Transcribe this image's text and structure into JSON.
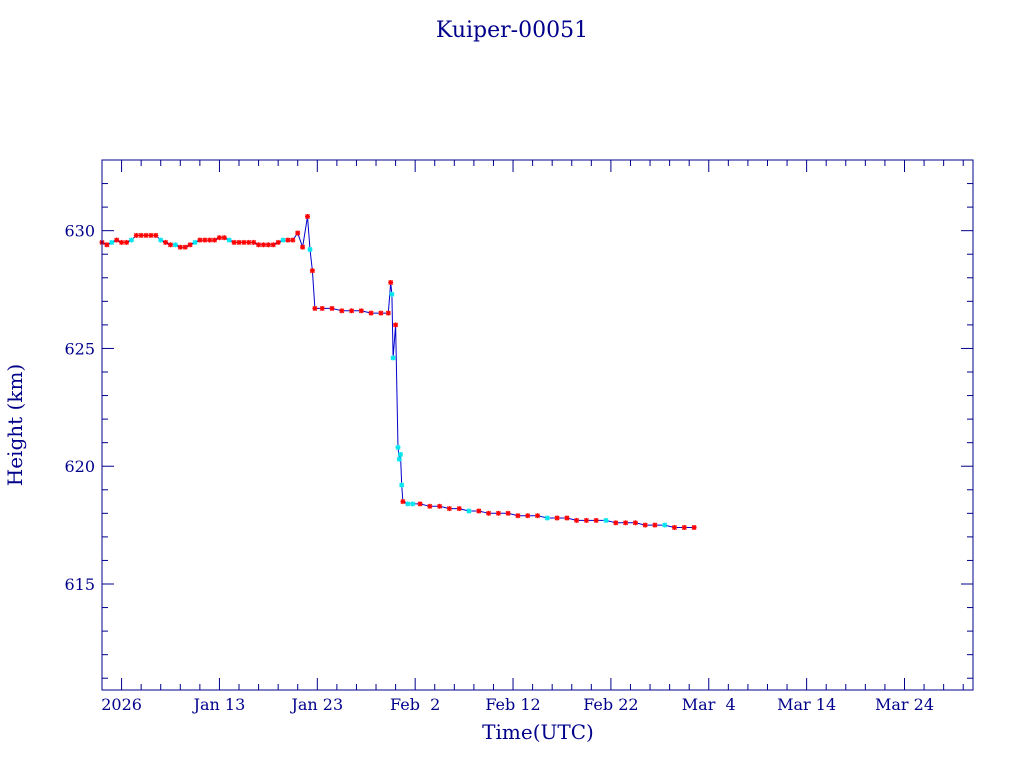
{
  "chart_data": {
    "type": "scatter",
    "title": "Kuiper-00051",
    "xlabel": "Time(UTC)",
    "ylabel": "Height (km)",
    "xlim": [
      "2026-01-01",
      "2026-03-31"
    ],
    "ylim": [
      610.5,
      633
    ],
    "x_ticks": [
      "2026",
      "Jan 13",
      "Jan 23",
      "Feb  2",
      "Feb 12",
      "Feb 22",
      "Mar  4",
      "Mar 14",
      "Mar 24"
    ],
    "y_ticks": [
      "615",
      "620",
      "625",
      "630"
    ],
    "colors": {
      "frame": "#00008b",
      "line": "#0000cd",
      "marker_primary": "#ff0000",
      "marker_secondary": "#00e5ee"
    },
    "series": [
      {
        "points": [
          {
            "t": "2026-01-01T00:00",
            "y": 629.5,
            "c": "r"
          },
          {
            "t": "2026-01-01T12:00",
            "y": 629.4,
            "c": "r"
          },
          {
            "t": "2026-01-02T00:00",
            "y": 629.5,
            "c": "c"
          },
          {
            "t": "2026-01-02T12:00",
            "y": 629.6,
            "c": "r"
          },
          {
            "t": "2026-01-03T00:00",
            "y": 629.5,
            "c": "r"
          },
          {
            "t": "2026-01-03T12:00",
            "y": 629.5,
            "c": "r"
          },
          {
            "t": "2026-01-04T00:00",
            "y": 629.6,
            "c": "c"
          },
          {
            "t": "2026-01-04T12:00",
            "y": 629.8,
            "c": "r"
          },
          {
            "t": "2026-01-05T00:00",
            "y": 629.8,
            "c": "r"
          },
          {
            "t": "2026-01-05T12:00",
            "y": 629.8,
            "c": "r"
          },
          {
            "t": "2026-01-06T00:00",
            "y": 629.8,
            "c": "r"
          },
          {
            "t": "2026-01-06T12:00",
            "y": 629.8,
            "c": "r"
          },
          {
            "t": "2026-01-07T00:00",
            "y": 629.6,
            "c": "c"
          },
          {
            "t": "2026-01-07T12:00",
            "y": 629.5,
            "c": "r"
          },
          {
            "t": "2026-01-08T00:00",
            "y": 629.4,
            "c": "r"
          },
          {
            "t": "2026-01-08T12:00",
            "y": 629.4,
            "c": "c"
          },
          {
            "t": "2026-01-09T00:00",
            "y": 629.3,
            "c": "r"
          },
          {
            "t": "2026-01-09T12:00",
            "y": 629.3,
            "c": "r"
          },
          {
            "t": "2026-01-10T00:00",
            "y": 629.4,
            "c": "r"
          },
          {
            "t": "2026-01-10T12:00",
            "y": 629.5,
            "c": "c"
          },
          {
            "t": "2026-01-11T00:00",
            "y": 629.6,
            "c": "r"
          },
          {
            "t": "2026-01-11T12:00",
            "y": 629.6,
            "c": "r"
          },
          {
            "t": "2026-01-12T00:00",
            "y": 629.6,
            "c": "r"
          },
          {
            "t": "2026-01-12T12:00",
            "y": 629.6,
            "c": "r"
          },
          {
            "t": "2026-01-13T00:00",
            "y": 629.7,
            "c": "r"
          },
          {
            "t": "2026-01-13T12:00",
            "y": 629.7,
            "c": "r"
          },
          {
            "t": "2026-01-14T00:00",
            "y": 629.6,
            "c": "c"
          },
          {
            "t": "2026-01-14T12:00",
            "y": 629.5,
            "c": "r"
          },
          {
            "t": "2026-01-15T00:00",
            "y": 629.5,
            "c": "r"
          },
          {
            "t": "2026-01-15T12:00",
            "y": 629.5,
            "c": "r"
          },
          {
            "t": "2026-01-16T00:00",
            "y": 629.5,
            "c": "r"
          },
          {
            "t": "2026-01-16T12:00",
            "y": 629.5,
            "c": "r"
          },
          {
            "t": "2026-01-17T00:00",
            "y": 629.4,
            "c": "r"
          },
          {
            "t": "2026-01-17T12:00",
            "y": 629.4,
            "c": "r"
          },
          {
            "t": "2026-01-18T00:00",
            "y": 629.4,
            "c": "r"
          },
          {
            "t": "2026-01-18T12:00",
            "y": 629.4,
            "c": "r"
          },
          {
            "t": "2026-01-19T00:00",
            "y": 629.5,
            "c": "r"
          },
          {
            "t": "2026-01-19T12:00",
            "y": 629.6,
            "c": "c"
          },
          {
            "t": "2026-01-20T00:00",
            "y": 629.6,
            "c": "r"
          },
          {
            "t": "2026-01-20T12:00",
            "y": 629.6,
            "c": "r"
          },
          {
            "t": "2026-01-21T00:00",
            "y": 629.9,
            "c": "r"
          },
          {
            "t": "2026-01-21T12:00",
            "y": 629.3,
            "c": "r"
          },
          {
            "t": "2026-01-22T00:00",
            "y": 630.6,
            "c": "r"
          },
          {
            "t": "2026-01-22T06:00",
            "y": 629.2,
            "c": "c"
          },
          {
            "t": "2026-01-22T12:00",
            "y": 628.3,
            "c": "r"
          },
          {
            "t": "2026-01-22T18:00",
            "y": 626.7,
            "c": "r"
          },
          {
            "t": "2026-01-23T12:00",
            "y": 626.7,
            "c": "r"
          },
          {
            "t": "2026-01-24T12:00",
            "y": 626.7,
            "c": "r"
          },
          {
            "t": "2026-01-25T12:00",
            "y": 626.6,
            "c": "r"
          },
          {
            "t": "2026-01-26T12:00",
            "y": 626.6,
            "c": "r"
          },
          {
            "t": "2026-01-27T12:00",
            "y": 626.6,
            "c": "r"
          },
          {
            "t": "2026-01-28T12:00",
            "y": 626.5,
            "c": "r"
          },
          {
            "t": "2026-01-29T12:00",
            "y": 626.5,
            "c": "r"
          },
          {
            "t": "2026-01-30T06:00",
            "y": 626.5,
            "c": "r"
          },
          {
            "t": "2026-01-30T12:00",
            "y": 627.8,
            "c": "r"
          },
          {
            "t": "2026-01-30T15:00",
            "y": 627.3,
            "c": "c"
          },
          {
            "t": "2026-01-30T18:00",
            "y": 624.6,
            "c": "c"
          },
          {
            "t": "2026-01-31T00:00",
            "y": 626.0,
            "c": "r"
          },
          {
            "t": "2026-01-31T06:00",
            "y": 620.8,
            "c": "c"
          },
          {
            "t": "2026-01-31T09:00",
            "y": 620.3,
            "c": "c"
          },
          {
            "t": "2026-01-31T12:00",
            "y": 620.5,
            "c": "c"
          },
          {
            "t": "2026-01-31T15:00",
            "y": 619.2,
            "c": "c"
          },
          {
            "t": "2026-01-31T18:00",
            "y": 618.5,
            "c": "r"
          },
          {
            "t": "2026-02-01T06:00",
            "y": 618.4,
            "c": "c"
          },
          {
            "t": "2026-02-01T18:00",
            "y": 618.4,
            "c": "c"
          },
          {
            "t": "2026-02-02T12:00",
            "y": 618.4,
            "c": "r"
          },
          {
            "t": "2026-02-03T12:00",
            "y": 618.3,
            "c": "r"
          },
          {
            "t": "2026-02-04T12:00",
            "y": 618.3,
            "c": "r"
          },
          {
            "t": "2026-02-05T12:00",
            "y": 618.2,
            "c": "r"
          },
          {
            "t": "2026-02-06T12:00",
            "y": 618.2,
            "c": "r"
          },
          {
            "t": "2026-02-07T12:00",
            "y": 618.1,
            "c": "c"
          },
          {
            "t": "2026-02-08T12:00",
            "y": 618.1,
            "c": "r"
          },
          {
            "t": "2026-02-09T12:00",
            "y": 618.0,
            "c": "r"
          },
          {
            "t": "2026-02-10T12:00",
            "y": 618.0,
            "c": "r"
          },
          {
            "t": "2026-02-11T12:00",
            "y": 618.0,
            "c": "r"
          },
          {
            "t": "2026-02-12T12:00",
            "y": 617.9,
            "c": "r"
          },
          {
            "t": "2026-02-13T12:00",
            "y": 617.9,
            "c": "r"
          },
          {
            "t": "2026-02-14T12:00",
            "y": 617.9,
            "c": "r"
          },
          {
            "t": "2026-02-15T12:00",
            "y": 617.8,
            "c": "c"
          },
          {
            "t": "2026-02-16T12:00",
            "y": 617.8,
            "c": "r"
          },
          {
            "t": "2026-02-17T12:00",
            "y": 617.8,
            "c": "r"
          },
          {
            "t": "2026-02-18T12:00",
            "y": 617.7,
            "c": "r"
          },
          {
            "t": "2026-02-19T12:00",
            "y": 617.7,
            "c": "r"
          },
          {
            "t": "2026-02-20T12:00",
            "y": 617.7,
            "c": "r"
          },
          {
            "t": "2026-02-21T12:00",
            "y": 617.7,
            "c": "c"
          },
          {
            "t": "2026-02-22T12:00",
            "y": 617.6,
            "c": "r"
          },
          {
            "t": "2026-02-23T12:00",
            "y": 617.6,
            "c": "r"
          },
          {
            "t": "2026-02-24T12:00",
            "y": 617.6,
            "c": "r"
          },
          {
            "t": "2026-02-25T12:00",
            "y": 617.5,
            "c": "r"
          },
          {
            "t": "2026-02-26T12:00",
            "y": 617.5,
            "c": "r"
          },
          {
            "t": "2026-02-27T12:00",
            "y": 617.5,
            "c": "c"
          },
          {
            "t": "2026-02-28T12:00",
            "y": 617.4,
            "c": "r"
          },
          {
            "t": "2026-03-01T12:00",
            "y": 617.4,
            "c": "r"
          },
          {
            "t": "2026-03-02T12:00",
            "y": 617.4,
            "c": "r"
          }
        ]
      }
    ]
  }
}
